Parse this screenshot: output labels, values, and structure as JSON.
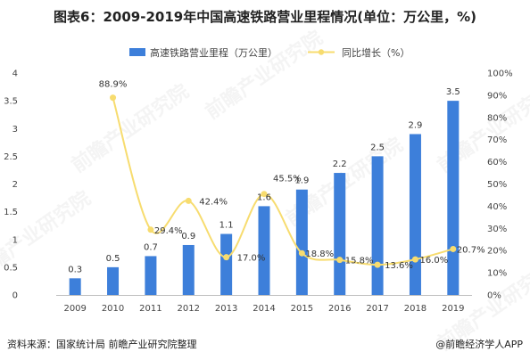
{
  "title": "图表6：2009-2019年中国高速铁路营业里程情况(单位：万公里，%)",
  "footer": {
    "source": "资料来源：国家统计局 前瞻产业研究院整理",
    "brand": "@前瞻经济学人APP"
  },
  "watermark": "前瞻产业研究院",
  "colors": {
    "bar": "#3d7fda",
    "line": "#f7dc6f",
    "text": "#333333"
  },
  "chart_data": {
    "type": "bar+line",
    "categories": [
      "2009",
      "2010",
      "2011",
      "2012",
      "2013",
      "2014",
      "2015",
      "2016",
      "2017",
      "2018",
      "2019"
    ],
    "series": [
      {
        "name": "高速铁路营业里程（万公里）",
        "type": "bar",
        "axis": "left",
        "values": [
          0.3,
          0.5,
          0.7,
          0.9,
          1.1,
          1.6,
          1.9,
          2.2,
          2.5,
          2.9,
          3.5
        ],
        "labels": [
          "0.3",
          "0.5",
          "0.7",
          "0.9",
          "1.1",
          "1.6",
          "1.9",
          "2.2",
          "2.5",
          "2.9",
          "3.5"
        ]
      },
      {
        "name": "同比增长（%）",
        "type": "line",
        "axis": "right",
        "x": [
          "2010",
          "2011",
          "2012",
          "2013",
          "2014",
          "2015",
          "2016",
          "2017",
          "2018",
          "2019"
        ],
        "values": [
          88.9,
          29.4,
          42.4,
          17.0,
          45.5,
          18.8,
          15.8,
          13.6,
          16.0,
          20.7
        ],
        "labels": [
          "88.9%",
          "29.4%",
          "42.4%",
          "17.0%",
          "45.5%",
          "18.8%",
          "15.8%",
          "13.6%",
          "16.0%",
          "20.7%"
        ]
      }
    ],
    "y_left": {
      "min": 0,
      "max": 4,
      "ticks": [
        "0",
        "0.5",
        "1",
        "1.5",
        "2",
        "2.5",
        "3",
        "3.5",
        "4"
      ]
    },
    "y_right": {
      "min": 0,
      "max": 100,
      "ticks": [
        "0%",
        "10%",
        "20%",
        "30%",
        "40%",
        "50%",
        "60%",
        "70%",
        "80%",
        "90%",
        "100%"
      ]
    },
    "legend_position": "top-center",
    "grid": false
  }
}
